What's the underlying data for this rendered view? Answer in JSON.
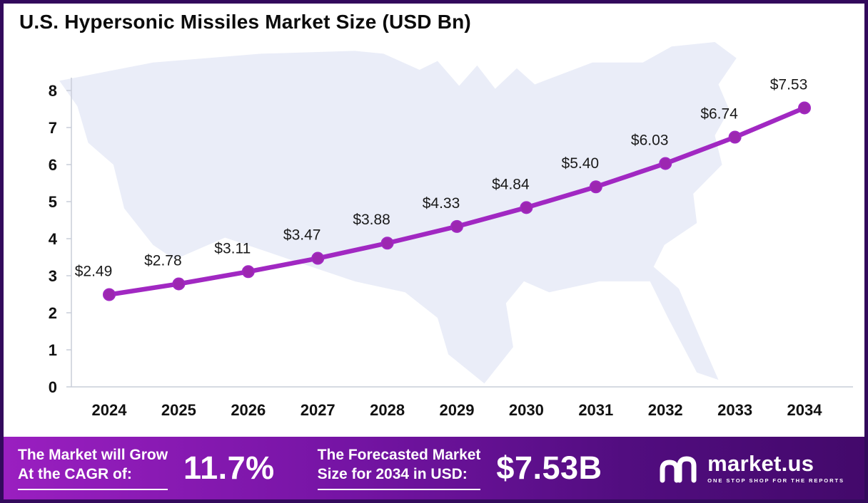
{
  "title": "U.S. Hypersonic Missiles Market Size (USD Bn)",
  "chart_data": {
    "type": "line",
    "title": "U.S. Hypersonic Missiles Market Size (USD Bn)",
    "categories": [
      "2024",
      "2025",
      "2026",
      "2027",
      "2028",
      "2029",
      "2030",
      "2031",
      "2032",
      "2033",
      "2034"
    ],
    "values": [
      2.49,
      2.78,
      3.11,
      3.47,
      3.88,
      4.33,
      4.84,
      5.4,
      6.03,
      6.74,
      7.53
    ],
    "point_labels": [
      "$2.49",
      "$2.78",
      "$3.11",
      "$3.47",
      "$3.88",
      "$4.33",
      "$4.84",
      "$5.40",
      "$6.03",
      "$6.74",
      "$7.53"
    ],
    "xlabel": "",
    "ylabel": "",
    "ylim": [
      0,
      8
    ],
    "yticks": [
      0,
      1,
      2,
      3,
      4,
      5,
      6,
      7,
      8
    ],
    "grid": false,
    "legend": "none",
    "line_color": "#A128C2",
    "point_color": "#9C27B0",
    "label_color": "#1a1a1a",
    "axis_color": "#c9cdd9",
    "background_map_color": "#eaedf8"
  },
  "footer": {
    "cagr_label_line1": "The Market will Grow",
    "cagr_label_line2": "At the CAGR of:",
    "cagr_value": "11.7%",
    "forecast_label_line1": "The Forecasted Market",
    "forecast_label_line2": "Size for 2034 in USD:",
    "forecast_value": "$7.53B",
    "brand_name": "market.us",
    "brand_tagline": "ONE STOP SHOP FOR THE REPORTS"
  },
  "colors": {
    "frame_border": "#330a5c",
    "footer_gradient_start": "#9a1fc0",
    "footer_gradient_end": "#43096b"
  }
}
